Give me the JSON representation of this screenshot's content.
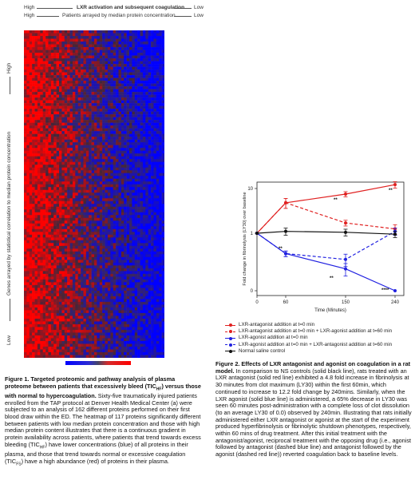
{
  "fig1": {
    "top_label_left": "High",
    "top_label_center": "LXR activation and subsequent coagulation",
    "top_label_right": "Low",
    "sub_label_left": "High",
    "sub_label_center": "Patients arrayed by median protein concentration",
    "sub_label_right": "Low",
    "side_label_high": "High",
    "side_label_center": "Genes arrayed by statistical correlation to median protein concentration",
    "side_label_low": "Low",
    "colors": {
      "high": "#ff0000",
      "low": "#0000ff",
      "mid": "#444466"
    },
    "caption_title": "Figure 1. Targeted proteomic and pathway analysis of plasma proteome between patients that excessively bleed (TIC",
    "caption_title_sub": "HF",
    "caption_title_end": ") versus those with normal to hypercoagulation.",
    "caption_body_1": "Sixty-five traumatically injured patients enrolled from the TAP protocol at Denver Health Medical Center (a) were subjected to an analysis of 162 different proteins performed on their first blood draw within the ED. The heatmap of 117 proteins significantly different between patients with low median protein concentration and those with high median protein content illustrates that there is a continuous gradient in protein availability across patients, where patients that trend towards excess bleeding (TIC",
    "caption_body_sub1": "HF",
    "caption_body_2": ") have lower concentrations (blue) of all proteins in their plasma, and those that trend towards normal or excessive coagulation (TIC",
    "caption_body_sub2": "FS",
    "caption_body_3": ") have a high abundance (red) of proteins in their plasma."
  },
  "fig2": {
    "caption_title": "Figure 2. Effects of LXR antagonist and agonist on coagulation in a rat model.",
    "caption_body": "In comparison to NS controls (solid black line), rats treated with an LXR antagonist (solid red line) exhibited a 4.8 fold increase in fibrinolysis at 30 minutes from clot maximum (LY30) within the first 60min, which continued to increase to 12.2 fold change by 240mins. Similarly, when the LXR agonist (solid blue line) is administered, a 65% decrease in LY30 was seen 60 minutes post-administration with a complete loss of clot dissolution (to an average LY30 of 0.0) observed by 240min. Illustrating that rats initially administered either LXR antagonist or agonist at the start of the experiment produced hyperfibrinolysis or fibrinolytic shutdown phenotypes, respectively, within 60 mins of drug treatment. After this initial treatment with the antagonist/agonist, reciprocal treatment with the opposing drug (i.e., agonist followed by antagonist (dashed blue line) and antagonist followed by the agonist (dashed red line)) reverted coagulation back to baseline levels."
  },
  "chart_data": {
    "type": "line",
    "xlabel": "Time (Minutes)",
    "ylabel": "Fold change in fibrinolysis (LY30) over baseline",
    "y_scale": "log",
    "x": [
      0,
      60,
      150,
      240
    ],
    "x_ticks": [
      "0",
      "60",
      "150",
      "240"
    ],
    "y_ticks": [
      "0",
      "1",
      "10"
    ],
    "series": [
      {
        "name": "LXR-antagonist addition at t=0 min",
        "color": "#e02020",
        "dash": false,
        "values": [
          1,
          4.8,
          7.5,
          12.2
        ],
        "err": [
          0,
          1.2,
          1.0,
          2.0
        ]
      },
      {
        "name": "LXR-antagonist addition at t=0 min + LXR-agonist addition at t=60 min",
        "color": "#e02020",
        "dash": true,
        "values": [
          1,
          4.8,
          1.7,
          1.25
        ],
        "err": [
          0,
          1.2,
          0.25,
          0.3
        ]
      },
      {
        "name": "LXR-agonist addition at t=0 min",
        "color": "#2020e0",
        "dash": false,
        "values": [
          1,
          0.35,
          0.16,
          0.0
        ],
        "err": [
          0,
          0.05,
          0.05,
          0
        ]
      },
      {
        "name": "LXR-agonist addition at t=0 min + LXR-antagonist addition at t=60 min",
        "color": "#2020e0",
        "dash": true,
        "values": [
          1,
          0.35,
          0.26,
          1.1
        ],
        "err": [
          0,
          0.05,
          0.08,
          0.2
        ]
      },
      {
        "name": "Normal saline control",
        "color": "#111111",
        "dash": false,
        "values": [
          1,
          1.1,
          1.05,
          0.95
        ],
        "err": [
          0,
          0.2,
          0.18,
          0.15
        ]
      }
    ],
    "annotations": [
      "**",
      "**",
      "**",
      "**",
      "****"
    ],
    "legend": "below"
  }
}
